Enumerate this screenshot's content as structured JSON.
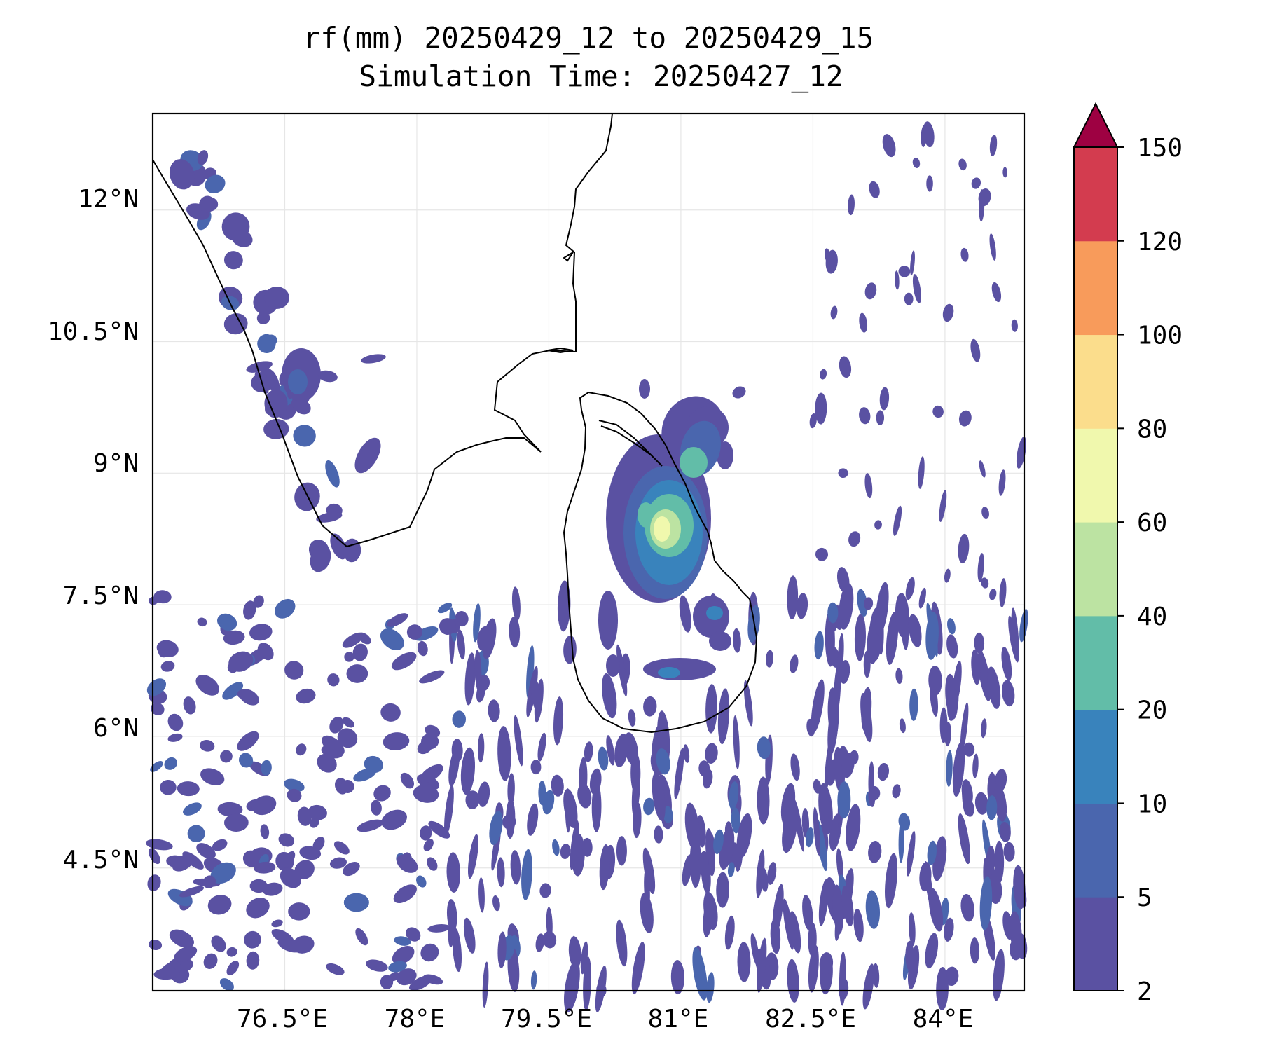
{
  "title": {
    "line1": "rf(mm) 20250429_12 to 20250429_15",
    "line2": "Simulation Time: 20250427_12"
  },
  "map_data": {
    "type": "filled-contour-map",
    "variable": "rf(mm)",
    "lon_range": [
      75.0,
      84.9
    ],
    "lat_range": [
      3.1,
      13.1
    ],
    "x_ticks": [
      "76.5°E",
      "78°E",
      "79.5°E",
      "81°E",
      "82.5°E",
      "84°E"
    ],
    "y_ticks": [
      "12°N",
      "10.5°N",
      "9°N",
      "7.5°N",
      "6°N",
      "4.5°N"
    ],
    "grid": true,
    "coastline": true,
    "max_rain_location": {
      "lon": 80.8,
      "lat": 8.3,
      "class": "60-80 mm"
    }
  },
  "colorbar": {
    "levels": [
      "2",
      "5",
      "10",
      "20",
      "40",
      "60",
      "80",
      "100",
      "120",
      "150"
    ],
    "colors": [
      "#5a51a2",
      "#4a66ae",
      "#3983bc",
      "#62bda8",
      "#bce3a2",
      "#f0f8ad",
      "#fbdd8c",
      "#f89b5b",
      "#d33c4f",
      "#9e0142"
    ],
    "extend": "max"
  }
}
